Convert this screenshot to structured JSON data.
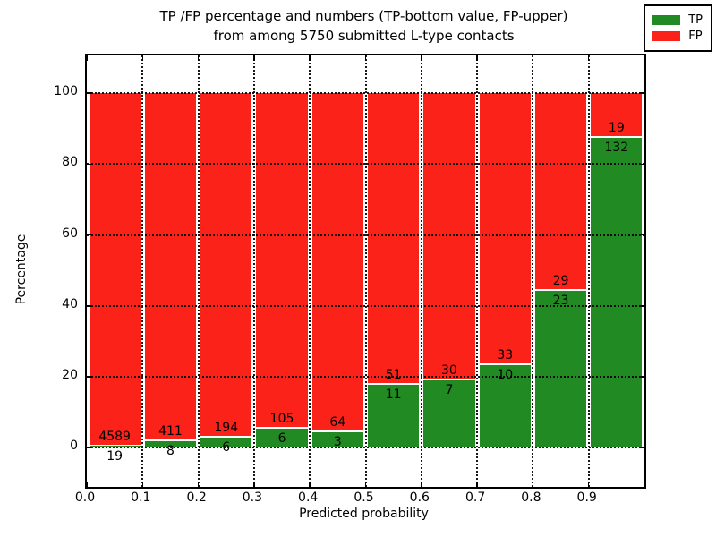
{
  "title": {
    "line1": "TP /FP percentage and numbers (TP-bottom value, FP-upper)",
    "line2": "from among 5750 submitted L-type contacts"
  },
  "axes": {
    "xlabel": "Predicted probability",
    "ylabel": "Percentage",
    "xtick_labels": [
      "0.0",
      "0.1",
      "0.2",
      "0.3",
      "0.4",
      "0.5",
      "0.6",
      "0.7",
      "0.8",
      "0.9"
    ],
    "ytick_values": [
      0,
      20,
      40,
      60,
      80,
      100
    ]
  },
  "legend": {
    "entries": [
      {
        "label": "TP",
        "color": "#228a22"
      },
      {
        "label": "FP",
        "color": "#fb2219"
      }
    ]
  },
  "colors": {
    "tp": "#228a22",
    "fp": "#fb2219",
    "grid": "#000000",
    "background": "#ffffff"
  },
  "chart_data": {
    "type": "bar",
    "stacked": true,
    "normalized_to_percent": true,
    "title": "TP /FP percentage and numbers (TP-bottom value, FP-upper) from among 5750 submitted L-type contacts",
    "xlabel": "Predicted probability",
    "ylabel": "Percentage",
    "categories": [
      "0.0-0.1",
      "0.1-0.2",
      "0.2-0.3",
      "0.3-0.4",
      "0.4-0.5",
      "0.5-0.6",
      "0.6-0.7",
      "0.7-0.8",
      "0.8-0.9",
      "0.9-1.0"
    ],
    "series": [
      {
        "name": "TP",
        "color": "#228a22",
        "counts": [
          19,
          8,
          6,
          6,
          3,
          11,
          7,
          10,
          23,
          132
        ]
      },
      {
        "name": "FP",
        "color": "#fb2219",
        "counts": [
          4589,
          411,
          194,
          105,
          64,
          51,
          30,
          33,
          29,
          19
        ]
      }
    ],
    "total_contacts": 5750,
    "xlim": [
      0.0,
      1.0
    ],
    "ylim": [
      -11,
      110.6
    ],
    "grid": true,
    "grid_style": "dotted",
    "legend_position": "upper right"
  }
}
